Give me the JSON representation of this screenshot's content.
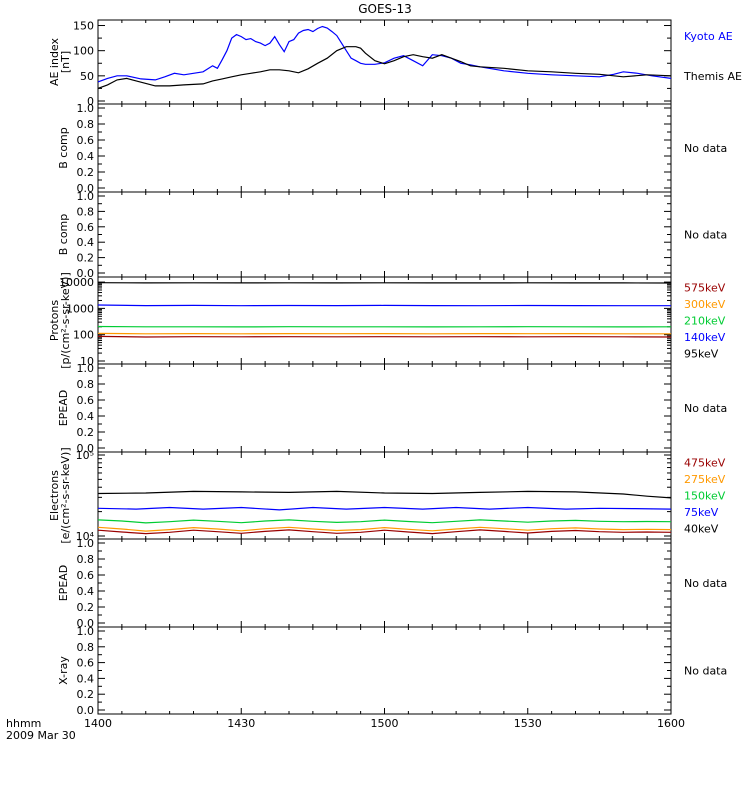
{
  "chart_data": {
    "type": "line",
    "title": "GOES-13",
    "x_axis": {
      "range_minutes": [
        0,
        120
      ],
      "ticks": [
        {
          "minute": 0,
          "label": "1400"
        },
        {
          "minute": 30,
          "label": "1430"
        },
        {
          "minute": 60,
          "label": "1500"
        },
        {
          "minute": 90,
          "label": "1530"
        },
        {
          "minute": 120,
          "label": "1600"
        }
      ],
      "corner_label_1": "hhmm",
      "corner_label_2": "2009 Mar 30"
    },
    "panels": [
      {
        "id": "ae",
        "ylabel": [
          "AE index",
          "[nT]"
        ],
        "scale": "linear",
        "ylim": [
          0,
          155
        ],
        "ticks": [
          {
            "v": 0,
            "label": "0"
          },
          {
            "v": 50,
            "label": "50"
          },
          {
            "v": 100,
            "label": "100"
          },
          {
            "v": 150,
            "label": "150"
          }
        ],
        "series": [
          {
            "name": "Kyoto AE",
            "color": "#0000ff",
            "x": [
              0,
              2,
              4,
              6,
              9,
              12,
              14,
              16,
              18,
              20,
              22,
              24,
              25,
              26,
              27,
              28,
              29,
              30,
              31,
              32,
              33,
              34,
              35,
              36,
              37,
              38,
              39,
              40,
              41,
              42,
              43,
              44,
              45,
              46,
              47,
              48,
              49,
              50,
              51,
              52,
              53,
              54,
              55,
              56,
              58,
              60,
              62,
              64,
              66,
              68,
              70,
              72,
              74,
              76,
              78,
              80,
              85,
              90,
              95,
              100,
              105,
              108,
              110,
              113,
              116,
              120
            ],
            "y": [
              38,
              45,
              50,
              50,
              44,
              42,
              48,
              55,
              52,
              55,
              58,
              70,
              65,
              82,
              100,
              125,
              132,
              128,
              122,
              124,
              118,
              115,
              110,
              115,
              128,
              112,
              98,
              118,
              122,
              135,
              140,
              142,
              138,
              144,
              148,
              145,
              138,
              130,
              115,
              100,
              85,
              80,
              75,
              73,
              73,
              76,
              85,
              90,
              80,
              70,
              92,
              90,
              85,
              75,
              72,
              68,
              60,
              55,
              52,
              50,
              48,
              53,
              58,
              55,
              50,
              45
            ]
          },
          {
            "name": "Themis AE",
            "color": "#000000",
            "x": [
              0,
              2,
              4,
              6,
              8,
              10,
              12,
              15,
              18,
              20,
              22,
              24,
              26,
              28,
              30,
              32,
              34,
              36,
              38,
              40,
              42,
              44,
              46,
              48,
              50,
              52,
              54,
              55,
              56,
              58,
              60,
              62,
              64,
              66,
              68,
              70,
              72,
              74,
              76,
              78,
              80,
              85,
              90,
              95,
              100,
              105,
              110,
              115,
              120
            ],
            "y": [
              25,
              32,
              42,
              45,
              40,
              35,
              30,
              30,
              32,
              33,
              34,
              40,
              44,
              48,
              52,
              55,
              58,
              62,
              62,
              60,
              56,
              64,
              75,
              85,
              100,
              108,
              108,
              105,
              95,
              80,
              74,
              80,
              88,
              92,
              88,
              85,
              92,
              85,
              78,
              70,
              68,
              65,
              60,
              58,
              55,
              53,
              48,
              52,
              50
            ]
          }
        ],
        "labels": [
          {
            "text": "Kyoto AE",
            "color": "#0000ff"
          },
          {
            "text": "Themis AE",
            "color": "#000000"
          }
        ]
      },
      {
        "id": "bcomp1",
        "ylabel": [
          "B comp"
        ],
        "scale": "linear",
        "ylim": [
          0,
          1
        ],
        "ticks": [
          {
            "v": 0,
            "label": "0.0"
          },
          {
            "v": 0.2,
            "label": "0.2"
          },
          {
            "v": 0.4,
            "label": "0.4"
          },
          {
            "v": 0.6,
            "label": "0.6"
          },
          {
            "v": 0.8,
            "label": "0.8"
          },
          {
            "v": 1,
            "label": "1.0"
          }
        ],
        "series": [],
        "labels": [
          {
            "text": "No data",
            "color": "#000000"
          }
        ]
      },
      {
        "id": "bcomp2",
        "ylabel": [
          "B comp"
        ],
        "scale": "linear",
        "ylim": [
          0,
          1
        ],
        "ticks": [
          {
            "v": 0,
            "label": "0.0"
          },
          {
            "v": 0.2,
            "label": "0.2"
          },
          {
            "v": 0.4,
            "label": "0.4"
          },
          {
            "v": 0.6,
            "label": "0.6"
          },
          {
            "v": 0.8,
            "label": "0.8"
          },
          {
            "v": 1,
            "label": "1.0"
          }
        ],
        "series": [],
        "labels": [
          {
            "text": "No data",
            "color": "#000000"
          }
        ]
      },
      {
        "id": "protons",
        "ylabel": [
          "Protons",
          "[p/(cm²-s-sr-keV)]"
        ],
        "scale": "log",
        "ylim": [
          10,
          12000
        ],
        "ticks": [
          {
            "v": 10,
            "label": "10"
          },
          {
            "v": 100,
            "label": "100"
          },
          {
            "v": 1000,
            "label": "1000"
          },
          {
            "v": 10000,
            "label": "10000"
          }
        ],
        "series": [
          {
            "name": "95keV",
            "color": "#000000",
            "x": [
              0,
              10,
              20,
              30,
              40,
              50,
              60,
              70,
              80,
              90,
              100,
              110,
              120
            ],
            "y": [
              9500,
              9300,
              9400,
              9300,
              9400,
              9300,
              9400,
              9300,
              9300,
              9400,
              9300,
              9300,
              9200
            ]
          },
          {
            "name": "140keV",
            "color": "#0000ff",
            "x": [
              0,
              10,
              20,
              30,
              40,
              50,
              60,
              70,
              80,
              90,
              100,
              110,
              120
            ],
            "y": [
              1350,
              1280,
              1300,
              1270,
              1290,
              1280,
              1300,
              1280,
              1270,
              1290,
              1280,
              1270,
              1260
            ]
          },
          {
            "name": "210keV",
            "color": "#00cc33",
            "x": [
              0,
              10,
              20,
              30,
              40,
              50,
              60,
              70,
              80,
              90,
              100,
              110,
              120
            ],
            "y": [
              205,
              200,
              200,
              198,
              202,
              200,
              200,
              198,
              200,
              202,
              200,
              198,
              200
            ]
          },
          {
            "name": "300keV",
            "color": "#ff9900",
            "x": [
              0,
              10,
              20,
              30,
              40,
              50,
              60,
              70,
              80,
              90,
              100,
              110,
              120
            ],
            "y": [
              112,
              108,
              110,
              108,
              110,
              109,
              110,
              108,
              110,
              109,
              110,
              108,
              108
            ]
          },
          {
            "name": "575keV",
            "color": "#990000",
            "x": [
              0,
              10,
              20,
              30,
              40,
              50,
              60,
              70,
              80,
              90,
              100,
              110,
              120
            ],
            "y": [
              86,
              82,
              84,
              83,
              84,
              83,
              84,
              83,
              84,
              83,
              84,
              83,
              82
            ]
          }
        ],
        "labels": [
          {
            "text": "575keV",
            "color": "#990000"
          },
          {
            "text": "300keV",
            "color": "#ff9900"
          },
          {
            "text": "210keV",
            "color": "#00cc33"
          },
          {
            "text": "140keV",
            "color": "#0000ff"
          },
          {
            "text": "95keV",
            "color": "#000000"
          }
        ]
      },
      {
        "id": "epead1",
        "ylabel": [
          "EPEAD"
        ],
        "scale": "linear",
        "ylim": [
          0,
          1
        ],
        "ticks": [
          {
            "v": 0,
            "label": "0.0"
          },
          {
            "v": 0.2,
            "label": "0.2"
          },
          {
            "v": 0.4,
            "label": "0.4"
          },
          {
            "v": 0.6,
            "label": "0.6"
          },
          {
            "v": 0.8,
            "label": "0.8"
          },
          {
            "v": 1,
            "label": "1.0"
          }
        ],
        "series": [],
        "labels": [
          {
            "text": "No data",
            "color": "#000000"
          }
        ]
      },
      {
        "id": "electrons",
        "ylabel": [
          "Electrons",
          "[e/(cm²-s-sr-keV)]"
        ],
        "scale": "log",
        "ylim": [
          10000,
          100000
        ],
        "ticks": [
          {
            "v": 10000,
            "label": "10⁴"
          },
          {
            "v": 100000,
            "label": "10⁵"
          }
        ],
        "series": [
          {
            "name": "40keV",
            "color": "#000000",
            "x": [
              0,
              10,
              20,
              30,
              40,
              50,
              60,
              70,
              80,
              90,
              100,
              110,
              115,
              120
            ],
            "y": [
              33500,
              34000,
              35500,
              35000,
              34500,
              35500,
              34000,
              33500,
              34500,
              35500,
              35000,
              33000,
              31000,
              29500
            ]
          },
          {
            "name": "75keV",
            "color": "#0000ff",
            "x": [
              0,
              8,
              15,
              22,
              30,
              38,
              45,
              52,
              60,
              68,
              75,
              82,
              90,
              98,
              105,
              112,
              120
            ],
            "y": [
              22000,
              21500,
              22500,
              21500,
              22500,
              21000,
              22500,
              21500,
              22500,
              21500,
              22500,
              21500,
              22500,
              21500,
              22000,
              21800,
              21500
            ]
          },
          {
            "name": "150keV",
            "color": "#00cc33",
            "x": [
              0,
              5,
              10,
              15,
              20,
              25,
              30,
              35,
              40,
              45,
              50,
              55,
              60,
              65,
              70,
              75,
              80,
              85,
              90,
              95,
              100,
              105,
              110,
              115,
              120
            ],
            "y": [
              15800,
              15300,
              14500,
              15000,
              15700,
              15200,
              14600,
              15300,
              15800,
              15200,
              14700,
              15000,
              15700,
              15100,
              14600,
              15200,
              15800,
              15300,
              14800,
              15300,
              15600,
              15200,
              15000,
              15100,
              15000
            ]
          },
          {
            "name": "275keV",
            "color": "#ff9900",
            "x": [
              0,
              5,
              10,
              15,
              20,
              25,
              30,
              35,
              40,
              45,
              50,
              55,
              60,
              65,
              70,
              75,
              80,
              85,
              90,
              95,
              100,
              105,
              110,
              115,
              120
            ],
            "y": [
              12800,
              12200,
              11500,
              12000,
              12700,
              12200,
              11600,
              12300,
              12800,
              12200,
              11700,
              12000,
              12700,
              12100,
              11600,
              12200,
              12800,
              12300,
              11800,
              12300,
              12600,
              12200,
              12000,
              12100,
              12000
            ]
          },
          {
            "name": "475keV",
            "color": "#990000",
            "x": [
              0,
              5,
              10,
              15,
              20,
              25,
              30,
              35,
              40,
              45,
              50,
              55,
              60,
              65,
              70,
              75,
              80,
              85,
              90,
              95,
              100,
              105,
              110,
              115,
              120
            ],
            "y": [
              11800,
              11200,
              10700,
              11100,
              11800,
              11300,
              10800,
              11400,
              11900,
              11300,
              10800,
              11100,
              11800,
              11200,
              10700,
              11300,
              11900,
              11400,
              10900,
              11400,
              11700,
              11300,
              11100,
              11200,
              11100
            ]
          }
        ],
        "labels": [
          {
            "text": "475keV",
            "color": "#990000"
          },
          {
            "text": "275keV",
            "color": "#ff9900"
          },
          {
            "text": "150keV",
            "color": "#00cc33"
          },
          {
            "text": "75keV",
            "color": "#0000ff"
          },
          {
            "text": "40keV",
            "color": "#000000"
          }
        ]
      },
      {
        "id": "epead2",
        "ylabel": [
          "EPEAD"
        ],
        "scale": "linear",
        "ylim": [
          0,
          1
        ],
        "ticks": [
          {
            "v": 0,
            "label": "0.0"
          },
          {
            "v": 0.2,
            "label": "0.2"
          },
          {
            "v": 0.4,
            "label": "0.4"
          },
          {
            "v": 0.6,
            "label": "0.6"
          },
          {
            "v": 0.8,
            "label": "0.8"
          },
          {
            "v": 1,
            "label": "1.0"
          }
        ],
        "series": [],
        "labels": [
          {
            "text": "No data",
            "color": "#000000"
          }
        ]
      },
      {
        "id": "xray",
        "ylabel": [
          "X-ray"
        ],
        "scale": "linear",
        "ylim": [
          0,
          1
        ],
        "ticks": [
          {
            "v": 0,
            "label": "0.0"
          },
          {
            "v": 0.2,
            "label": "0.2"
          },
          {
            "v": 0.4,
            "label": "0.4"
          },
          {
            "v": 0.6,
            "label": "0.6"
          },
          {
            "v": 0.8,
            "label": "0.8"
          },
          {
            "v": 1,
            "label": "1.0"
          }
        ],
        "series": [],
        "labels": [
          {
            "text": "No data",
            "color": "#000000"
          }
        ]
      }
    ]
  }
}
